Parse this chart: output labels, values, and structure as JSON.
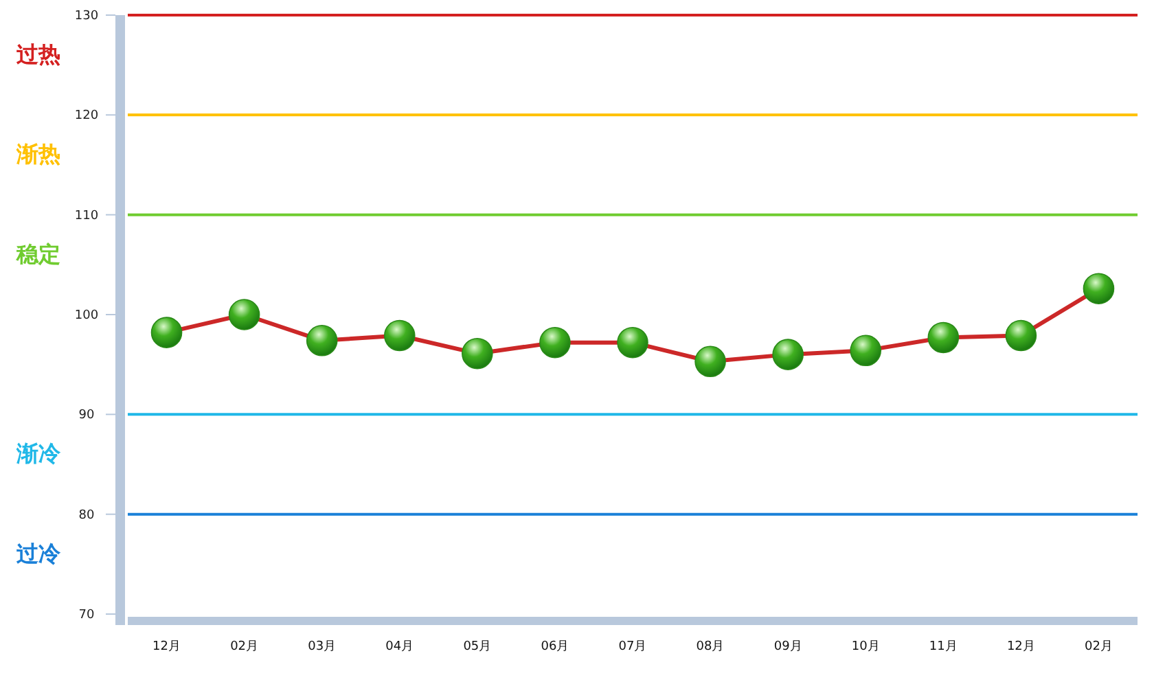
{
  "chart_data": {
    "type": "line",
    "categories": [
      "12月",
      "02月",
      "03月",
      "04月",
      "05月",
      "06月",
      "07月",
      "08月",
      "09月",
      "10月",
      "11月",
      "12月",
      "02月"
    ],
    "series": [
      {
        "color": "#cc2828",
        "values": [
          98.2,
          100.0,
          97.4,
          97.9,
          96.1,
          97.2,
          97.2,
          95.3,
          96.0,
          96.4,
          97.7,
          97.9,
          102.6
        ]
      }
    ],
    "marker": "circle",
    "ylim": [
      70,
      130
    ],
    "yticks": [
      70,
      80,
      90,
      100,
      110,
      120,
      130
    ],
    "ref_lines": [
      {
        "axis": "y",
        "value": 130,
        "color": "#d42020",
        "label": "过热"
      },
      {
        "axis": "y",
        "value": 120,
        "color": "#ffc000",
        "label": "渐热"
      },
      {
        "axis": "y",
        "value": 110,
        "color": "#70cc30",
        "label": "稳定"
      },
      {
        "axis": "y",
        "value": 90,
        "color": "#20b8e8",
        "label": "渐冷"
      },
      {
        "axis": "y",
        "value": 80,
        "color": "#1a80d8",
        "label": "过冷"
      }
    ]
  }
}
